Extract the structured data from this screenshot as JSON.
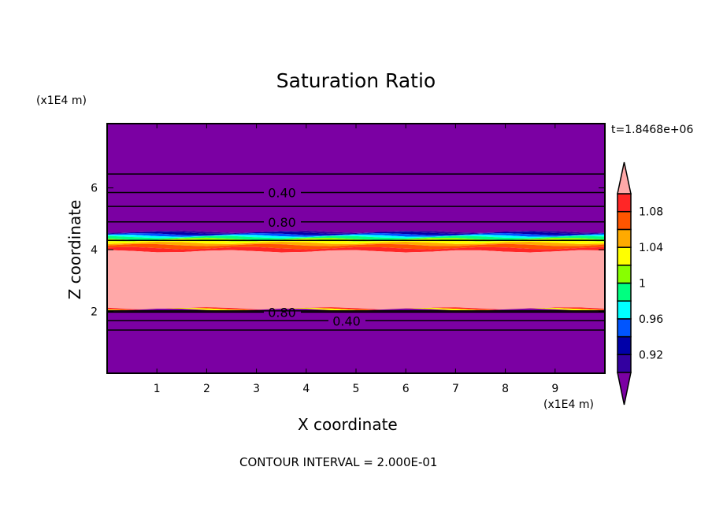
{
  "chart_data": {
    "type": "heatmap",
    "title": "Saturation Ratio",
    "xlabel": "X coordinate",
    "ylabel": "Z coordinate",
    "x_unit": "(x1E4 m)",
    "y_unit": "(x1E4 m)",
    "time_label": "t=1.8468e+06",
    "footer": "CONTOUR INTERVAL = 2.000E-01",
    "xlim": [
      0,
      10
    ],
    "ylim": [
      0,
      8.08
    ],
    "x_ticks": [
      1,
      2,
      3,
      4,
      5,
      6,
      7,
      8,
      9
    ],
    "y_ticks": [
      2,
      4,
      6
    ],
    "colorbar": {
      "levels": [
        0.9,
        0.92,
        0.94,
        0.96,
        0.98,
        1.0,
        1.02,
        1.04,
        1.06,
        1.08,
        1.1
      ],
      "colors": [
        "#7b00a3",
        "#3300a0",
        "#0000a8",
        "#0055ff",
        "#00ffff",
        "#00ff80",
        "#88ff00",
        "#ffff00",
        "#ffaa00",
        "#ff5500",
        "#ff2626",
        "#ffa8a8"
      ],
      "tick_labels": [
        "0.92",
        "0.96",
        "1",
        "1.04",
        "1.08"
      ],
      "tick_values": [
        0.92,
        0.96,
        1.0,
        1.04,
        1.08
      ],
      "extend": "both"
    },
    "bands": [
      {
        "z": [
          4.58,
          8.08
        ],
        "level": "<0.90"
      },
      {
        "z": [
          4.55,
          4.58
        ],
        "level": "0.90-0.92"
      },
      {
        "z": [
          4.5,
          4.55
        ],
        "level": "0.92-0.94"
      },
      {
        "z": [
          4.45,
          4.5
        ],
        "level": "0.94-0.96"
      },
      {
        "z": [
          4.41,
          4.45
        ],
        "level": "0.96-0.98"
      },
      {
        "z": [
          4.35,
          4.41
        ],
        "level": "0.98-1.00"
      },
      {
        "z": [
          4.3,
          4.35
        ],
        "level": "1.00-1.02"
      },
      {
        "z": [
          4.22,
          4.3
        ],
        "level": "1.02-1.04"
      },
      {
        "z": [
          4.15,
          4.22
        ],
        "level": "1.04-1.06"
      },
      {
        "z": [
          4.05,
          4.15
        ],
        "level": "1.06-1.08"
      },
      {
        "z": [
          3.95,
          4.05
        ],
        "level": "1.08-1.10"
      },
      {
        "z": [
          2.1,
          3.95
        ],
        "level": ">1.10"
      },
      {
        "z": [
          2.08,
          2.1
        ],
        "level": "1.08-1.10"
      },
      {
        "z": [
          2.06,
          2.08
        ],
        "level": "1.02-1.04"
      },
      {
        "z": [
          0,
          2.06
        ],
        "level": "<0.90"
      }
    ],
    "contours": [
      {
        "z": 6.45,
        "label": ""
      },
      {
        "z": 5.85,
        "label": "0.40"
      },
      {
        "z": 5.4,
        "label": ""
      },
      {
        "z": 4.9,
        "label": "0.80"
      },
      {
        "z": 4.3,
        "label": ""
      },
      {
        "z": 2.02,
        "label": ""
      },
      {
        "z": 1.98,
        "label": "0.80"
      },
      {
        "z": 1.7,
        "label": "0.40"
      },
      {
        "z": 1.4,
        "label": ""
      }
    ]
  }
}
